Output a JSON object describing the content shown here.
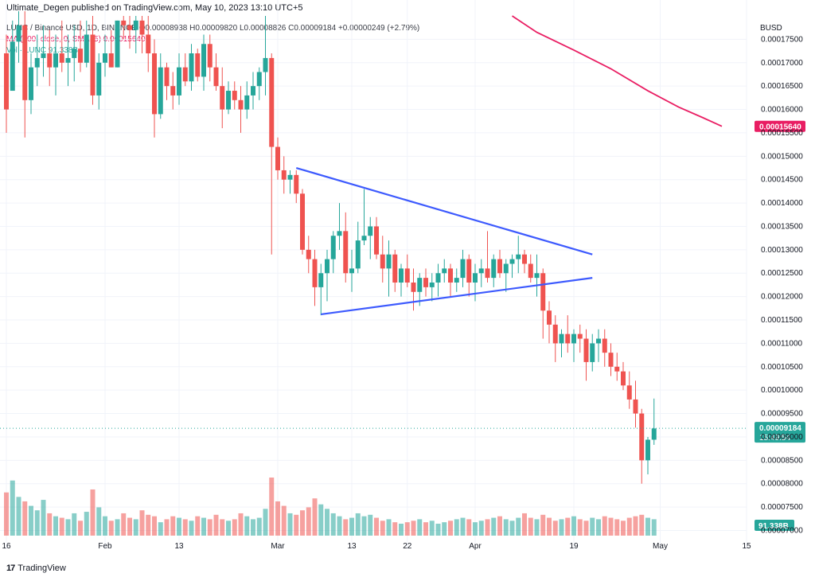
{
  "header": {
    "publisher": "Ultimate_Degen published on TradingView.com, May 10, 2023 13:10 UTC+5"
  },
  "legend": {
    "ohlc": "LUNC / Binance USD, 1D, BINANCE  O0.00008938  H0.00009820  L0.00008826  C0.00009184  +0.00000249 (+2.79%)",
    "ma": "MA (200, close, 0, SMA, 5)  0.00015640",
    "vol": "Vol · LUNC  91.338B"
  },
  "footer": {
    "brand": "TradingView"
  },
  "colors": {
    "up": "#26a69a",
    "down": "#ef5350",
    "ma": "#e91e63",
    "trendline": "#3d5afe"
  },
  "chart_data": {
    "type": "candlestick",
    "symbol": "LUNC / Binance USD",
    "interval": "1D",
    "exchange": "BINANCE",
    "y_axis": {
      "unit": "BUSD",
      "ticks": [
        "0.00017500",
        "0.00017000",
        "0.00016500",
        "0.00016000",
        "0.00015500",
        "0.00015000",
        "0.00014500",
        "0.00014000",
        "0.00013500",
        "0.00013000",
        "0.00012500",
        "0.00012000",
        "0.00011500",
        "0.00011000",
        "0.00010500",
        "0.00010000",
        "0.00009500",
        "0.00009000",
        "0.00008500",
        "0.00008000",
        "0.00007500",
        "0.00007000"
      ],
      "ylim": [
        6.6e-05,
        0.00018
      ]
    },
    "x_axis": {
      "ticks": [
        "16",
        "Feb",
        "13",
        "Mar",
        "13",
        "22",
        "Apr",
        "19",
        "May",
        "15"
      ],
      "tick_days": [
        0,
        16,
        28,
        44,
        56,
        65,
        76,
        92,
        106,
        120
      ]
    },
    "last_price": {
      "value": "0.00009184",
      "countdown": "15:49:54"
    },
    "ma_label": "0.00015640",
    "vol_label": "91.338B",
    "ma200": [
      [
        82,
        0.00018
      ],
      [
        86,
        0.0001765
      ],
      [
        92,
        0.0001727
      ],
      [
        98,
        0.0001687
      ],
      [
        104,
        0.000164
      ],
      [
        109,
        0.0001605
      ],
      [
        113,
        0.0001582
      ],
      [
        116,
        0.0001564
      ]
    ],
    "trendlines": [
      {
        "name": "upper",
        "points": [
          [
            47,
            0.0001475
          ],
          [
            95,
            0.000129
          ]
        ]
      },
      {
        "name": "lower",
        "points": [
          [
            51,
            0.0001162
          ],
          [
            95,
            0.000124
          ]
        ]
      }
    ],
    "candles": [
      [
        0,
        0.000172,
        0.000176,
        0.000155,
        0.00016
      ],
      [
        1,
        0.000164,
        0.000179,
        0.000164,
        0.0001745
      ],
      [
        2,
        0.0001745,
        0.000181,
        0.00017,
        0.000178
      ],
      [
        3,
        0.000178,
        0.000181,
        0.000154,
        0.000162
      ],
      [
        4,
        0.000162,
        0.000172,
        0.000159,
        0.000169
      ],
      [
        5,
        0.000169,
        0.000176,
        0.000165,
        0.000171
      ],
      [
        6,
        0.000171,
        0.000178,
        0.000167,
        0.000172
      ],
      [
        7,
        0.000172,
        0.000177,
        0.000165,
        0.000169
      ],
      [
        8,
        0.000169,
        0.000176,
        0.000163,
        0.000172
      ],
      [
        9,
        0.000172,
        0.000179,
        0.000168,
        0.00017
      ],
      [
        10,
        0.00017,
        0.000176,
        0.000165,
        0.000171
      ],
      [
        11,
        0.000171,
        0.000178,
        0.000166,
        0.000173
      ],
      [
        12,
        0.000173,
        0.000179,
        0.000168,
        0.00017
      ],
      [
        13,
        0.00017,
        0.000179,
        0.000169,
        0.000176
      ],
      [
        14,
        0.000176,
        0.00018,
        0.000161,
        0.000163
      ],
      [
        15,
        0.000163,
        0.000172,
        0.00016,
        0.00017
      ],
      [
        16,
        0.00017,
        0.000176,
        0.000167,
        0.000172
      ],
      [
        17,
        0.000172,
        0.000177,
        0.000169,
        0.000169
      ],
      [
        18,
        0.000169,
        0.000179,
        0.000169,
        0.000179
      ],
      [
        19,
        0.000179,
        0.00018,
        0.000175,
        0.000178
      ],
      [
        20,
        0.000178,
        0.00018,
        0.000173,
        0.000177
      ],
      [
        21,
        0.000177,
        0.00018,
        0.000172,
        0.000179
      ],
      [
        22,
        0.000179,
        0.00018,
        0.000172,
        0.000176
      ],
      [
        23,
        0.000176,
        0.00018,
        0.000168,
        0.000172
      ],
      [
        24,
        0.000172,
        0.000175,
        0.000154,
        0.000159
      ],
      [
        25,
        0.000159,
        0.000172,
        0.000158,
        0.000169
      ],
      [
        26,
        0.000169,
        0.00017,
        0.000162,
        0.000165
      ],
      [
        27,
        0.000165,
        0.000168,
        0.00016,
        0.000163
      ],
      [
        28,
        0.000163,
        0.000172,
        0.000161,
        0.000169
      ],
      [
        29,
        0.000169,
        0.000172,
        0.000165,
        0.000166
      ],
      [
        30,
        0.000166,
        0.000174,
        0.000164,
        0.000172
      ],
      [
        31,
        0.000172,
        0.000173,
        0.000166,
        0.000167
      ],
      [
        32,
        0.000167,
        0.000176,
        0.000164,
        0.000174
      ],
      [
        33,
        0.000174,
        0.000176,
        0.000166,
        0.000169
      ],
      [
        34,
        0.000169,
        0.000172,
        0.000164,
        0.000165
      ],
      [
        35,
        0.000165,
        0.000169,
        0.000156,
        0.00016
      ],
      [
        36,
        0.00016,
        0.000166,
        0.000159,
        0.000164
      ],
      [
        37,
        0.000164,
        0.000166,
        0.00016,
        0.000162
      ],
      [
        38,
        0.000162,
        0.000165,
        0.000155,
        0.00016
      ],
      [
        39,
        0.00016,
        0.000166,
        0.000158,
        0.000163
      ],
      [
        40,
        0.000163,
        0.000168,
        0.00016,
        0.000165
      ],
      [
        41,
        0.000165,
        0.000169,
        0.000162,
        0.000168
      ],
      [
        42,
        0.000168,
        0.00018,
        0.000163,
        0.000171
      ],
      [
        43,
        0.000171,
        0.000172,
        0.000129,
        0.000152
      ],
      [
        44,
        0.000152,
        0.000154,
        0.000145,
        0.000147
      ],
      [
        45,
        0.000147,
        0.00015,
        0.000142,
        0.000145
      ],
      [
        46,
        0.000145,
        0.000147,
        0.000142,
        0.000146
      ],
      [
        47,
        0.000146,
        0.000147,
        0.00014,
        0.000142
      ],
      [
        48,
        0.000142,
        0.000143,
        0.000129,
        0.00013
      ],
      [
        49,
        0.00013,
        0.000133,
        0.000125,
        0.000128
      ],
      [
        50,
        0.000128,
        0.00013,
        0.000118,
        0.000122
      ],
      [
        51,
        0.000122,
        0.000127,
        0.000116,
        0.000125
      ],
      [
        52,
        0.000125,
        0.00013,
        0.000119,
        0.000128
      ],
      [
        53,
        0.000128,
        0.000134,
        0.000125,
        0.000133
      ],
      [
        54,
        0.000133,
        0.00014,
        0.00013,
        0.000134
      ],
      [
        55,
        0.000134,
        0.000138,
        0.000123,
        0.000125
      ],
      [
        56,
        0.000125,
        0.00013,
        0.000121,
        0.000126
      ],
      [
        57,
        0.000126,
        0.000136,
        0.000125,
        0.000132
      ],
      [
        58,
        0.000132,
        0.000143,
        0.000131,
        0.000133
      ],
      [
        59,
        0.000133,
        0.000137,
        0.000128,
        0.000135
      ],
      [
        60,
        0.000135,
        0.000137,
        0.000128,
        0.000129
      ],
      [
        61,
        0.000129,
        0.000133,
        0.000123,
        0.000126
      ],
      [
        62,
        0.000126,
        0.000132,
        0.00012,
        0.000129
      ],
      [
        63,
        0.000129,
        0.00013,
        0.000121,
        0.000123
      ],
      [
        64,
        0.000123,
        0.000127,
        0.00012,
        0.000126
      ],
      [
        65,
        0.000126,
        0.000129,
        0.000122,
        0.000123
      ],
      [
        66,
        0.000123,
        0.000126,
        0.000117,
        0.000121
      ],
      [
        67,
        0.000121,
        0.000125,
        0.000118,
        0.000124
      ],
      [
        68,
        0.000124,
        0.000126,
        0.00012,
        0.000122
      ],
      [
        69,
        0.000122,
        0.000125,
        0.000119,
        0.000123
      ],
      [
        70,
        0.000123,
        0.000127,
        0.00012,
        0.000125
      ],
      [
        71,
        0.000125,
        0.000128,
        0.000123,
        0.000126
      ],
      [
        72,
        0.000126,
        0.000127,
        0.00012,
        0.000123
      ],
      [
        73,
        0.000123,
        0.000126,
        0.000121,
        0.000124
      ],
      [
        74,
        0.000124,
        0.00013,
        0.000122,
        0.000128
      ],
      [
        75,
        0.000128,
        0.000129,
        0.00012,
        0.000123
      ],
      [
        76,
        0.000123,
        0.000127,
        0.000119,
        0.000125
      ],
      [
        77,
        0.000125,
        0.000128,
        0.000122,
        0.000126
      ],
      [
        78,
        0.000126,
        0.000134,
        0.000123,
        0.000124
      ],
      [
        79,
        0.000124,
        0.000129,
        0.000122,
        0.000128
      ],
      [
        80,
        0.000128,
        0.00013,
        0.000124,
        0.000125
      ],
      [
        81,
        0.000125,
        0.000128,
        0.000121,
        0.000127
      ],
      [
        82,
        0.000127,
        0.000129,
        0.000124,
        0.000128
      ],
      [
        83,
        0.000128,
        0.000133,
        0.000125,
        0.000129
      ],
      [
        84,
        0.000129,
        0.00013,
        0.000125,
        0.000127
      ],
      [
        85,
        0.000127,
        0.000129,
        0.000123,
        0.000124
      ],
      [
        86,
        0.000124,
        0.000129,
        0.00012,
        0.000125
      ],
      [
        87,
        0.000125,
        0.000126,
        0.000111,
        0.000117
      ],
      [
        88,
        0.000117,
        0.000119,
        0.00011,
        0.000114
      ],
      [
        89,
        0.000114,
        0.000116,
        0.000106,
        0.00011
      ],
      [
        90,
        0.00011,
        0.000113,
        0.000107,
        0.000112
      ],
      [
        91,
        0.000112,
        0.000116,
        0.000108,
        0.00011
      ],
      [
        92,
        0.00011,
        0.000113,
        0.000106,
        0.000112
      ],
      [
        93,
        0.000112,
        0.000114,
        0.000108,
        0.000111
      ],
      [
        94,
        0.000111,
        0.000113,
        0.000102,
        0.000106
      ],
      [
        95,
        0.000106,
        0.000112,
        0.000104,
        0.00011
      ],
      [
        96,
        0.00011,
        0.000113,
        0.000106,
        0.000111
      ],
      [
        97,
        0.000111,
        0.000113,
        0.000105,
        0.000108
      ],
      [
        98,
        0.000108,
        0.00011,
        0.000103,
        0.000105
      ],
      [
        99,
        0.000105,
        0.000108,
        0.000102,
        0.000104
      ],
      [
        100,
        0.000104,
        0.000106,
        0.0001,
        0.000101
      ],
      [
        101,
        0.000101,
        0.000104,
        9.6e-05,
        9.8e-05
      ],
      [
        102,
        9.8e-05,
        0.000102,
        9.2e-05,
        9.5e-05
      ],
      [
        103,
        9.5e-05,
        9.6e-05,
        8e-05,
        8.5e-05
      ],
      [
        104,
        8.5e-05,
        9e-05,
        8.2e-05,
        8.94e-05
      ],
      [
        105,
        8.94e-05,
        9.82e-05,
        8.83e-05,
        9.18e-05
      ]
    ],
    "volume": [
      58,
      74,
      52,
      46,
      40,
      34,
      48,
      30,
      26,
      24,
      22,
      30,
      20,
      32,
      62,
      38,
      26,
      20,
      22,
      30,
      24,
      22,
      34,
      28,
      26,
      18,
      22,
      26,
      24,
      22,
      20,
      26,
      24,
      22,
      28,
      22,
      20,
      22,
      30,
      26,
      22,
      24,
      36,
      78,
      46,
      40,
      30,
      28,
      34,
      38,
      50,
      42,
      36,
      30,
      26,
      22,
      24,
      30,
      26,
      28,
      24,
      20,
      22,
      18,
      16,
      18,
      20,
      22,
      18,
      20,
      16,
      18,
      20,
      22,
      24,
      22,
      18,
      20,
      22,
      24,
      26,
      22,
      20,
      24,
      30,
      24,
      22,
      28,
      24,
      20,
      22,
      24,
      26,
      22,
      20,
      24,
      22,
      26,
      24,
      22,
      20,
      24,
      26,
      28,
      24,
      22
    ],
    "vol_max": 78,
    "vol_colors": "close-vs-open"
  }
}
